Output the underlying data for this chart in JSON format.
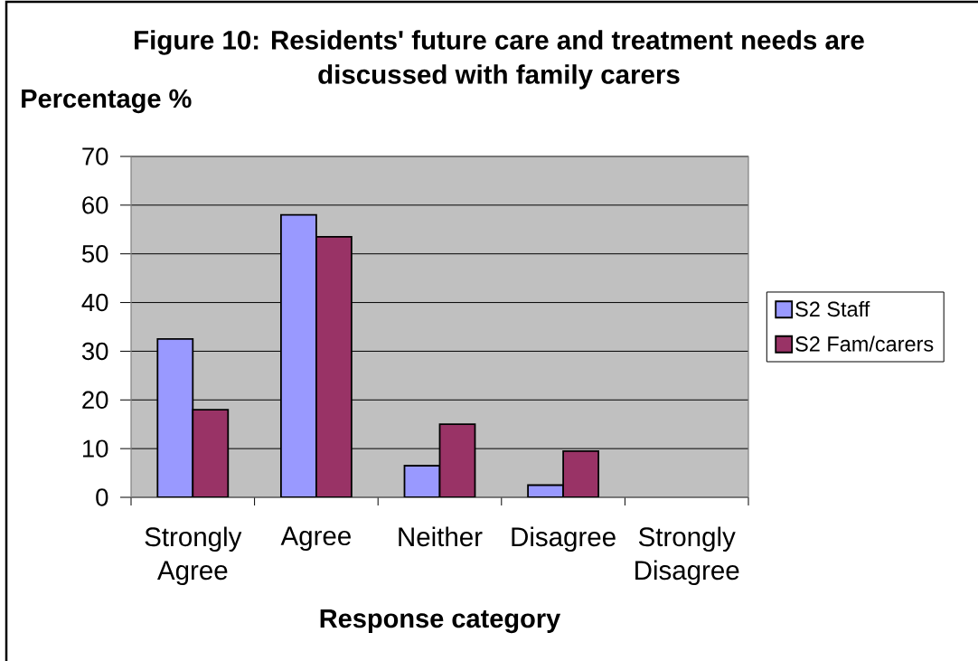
{
  "chart_data": {
    "type": "bar",
    "title": "Figure 10: Residents' future care and treatment needs are discussed with family carers",
    "xlabel": "Response category",
    "ylabel": "Percentage %",
    "categories": [
      "Strongly Agree",
      "Agree",
      "Neither",
      "Disagree",
      "Strongly Disagree"
    ],
    "series": [
      {
        "name": "S2 Staff",
        "color": "#9999ff",
        "values": [
          32.5,
          58,
          6.5,
          2.5,
          null
        ]
      },
      {
        "name": "S2 Fam/carers",
        "color": "#993366",
        "values": [
          18,
          53.5,
          15,
          9.5,
          null
        ]
      }
    ],
    "ylim": [
      0,
      70
    ],
    "yticks": [
      0,
      10,
      20,
      30,
      40,
      50,
      60,
      70
    ],
    "grid": "y",
    "legend": "right"
  }
}
